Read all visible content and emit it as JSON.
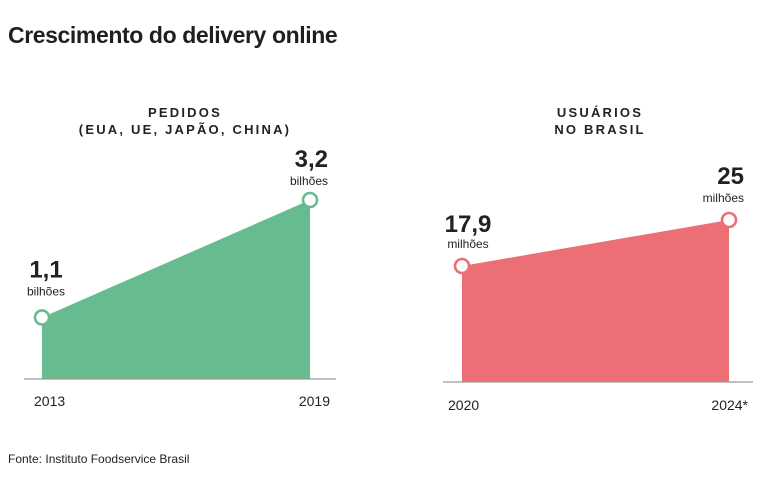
{
  "page": {
    "title": "Crescimento do delivery online",
    "source": "Fonte: Instituto Foodservice Brasil"
  },
  "chart_data": [
    {
      "type": "area",
      "title_lines": [
        "PEDIDOS",
        "(EUA, UE, JAPÃO, CHINA)"
      ],
      "x": [
        "2013",
        "2019"
      ],
      "values": [
        1.1,
        3.2
      ],
      "value_labels": [
        "1,1",
        "3,2"
      ],
      "unit": "bilhões",
      "color": "#66bb8f",
      "ylim": [
        0,
        3.2
      ]
    },
    {
      "type": "area",
      "title_lines": [
        "USUÁRIOS",
        "NO BRASIL"
      ],
      "x": [
        "2020",
        "2024*"
      ],
      "values": [
        17.9,
        25
      ],
      "value_labels": [
        "17,9",
        "25"
      ],
      "unit": "milhões",
      "color": "#ec6f76",
      "ylim": [
        0,
        25
      ]
    }
  ],
  "colors": {
    "axis": "#9a9a9a",
    "text": "#222222",
    "marker_fill": "#ffffff"
  }
}
